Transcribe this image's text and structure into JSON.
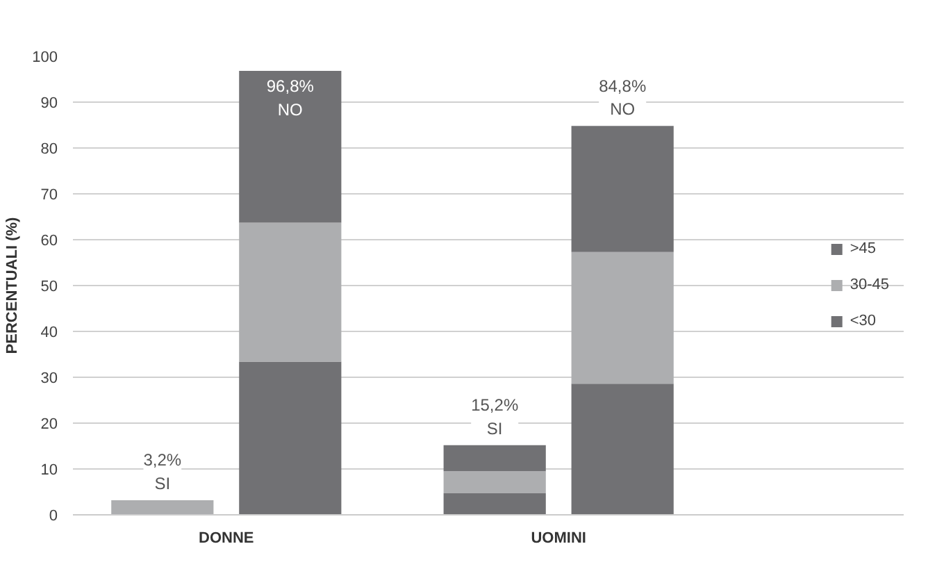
{
  "chart_data": {
    "type": "bar",
    "stacked": true,
    "ylabel": "PERCENTUALI (%)",
    "categories": [
      null,
      null,
      null,
      null
    ],
    "series": [
      {
        "name": "<30",
        "color": "#717174",
        "values": [
          0,
          33.4,
          4.7,
          28.6
        ]
      },
      {
        "name": "30-45",
        "color": "#adaeb0",
        "values": [
          3.2,
          30.3,
          4.8,
          28.7
        ]
      },
      {
        "name": ">45",
        "color": "#717174",
        "values": [
          0,
          33.1,
          5.7,
          27.5
        ]
      }
    ],
    "ylim": [
      0,
      100
    ],
    "yticks": [
      0,
      10,
      20,
      30,
      40,
      50,
      60,
      70,
      80,
      90,
      100
    ],
    "grid": "y",
    "legend": "right",
    "annotations": [
      "DONNE",
      "UOMINI",
      {
        "text": "3,2%\nSI",
        "y": 3.2
      },
      {
        "text": "96,8%\nNO",
        "y": 96.8
      },
      {
        "text": "15,2%\nSI",
        "y": 15.2
      },
      {
        "text": "84,8%\nNO",
        "y": 84.8
      }
    ]
  }
}
